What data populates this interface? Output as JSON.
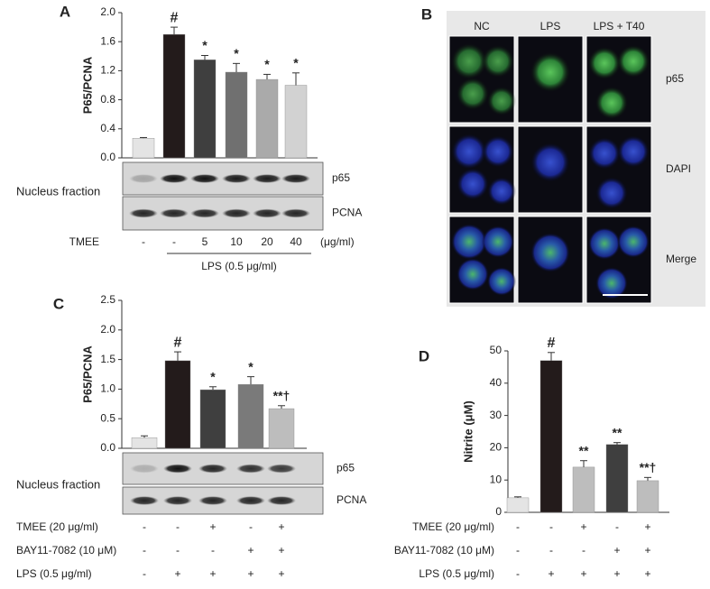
{
  "chart_data": [
    {
      "type": "bar",
      "label": "A",
      "y_label": "P65/PCNA",
      "values": [
        0.27,
        1.7,
        1.35,
        1.18,
        1.08,
        1.0
      ],
      "errors": [
        0.01,
        0.1,
        0.06,
        0.12,
        0.07,
        0.17
      ],
      "colors": [
        "#e4e4e4",
        "#231b1b",
        "#3f3f3f",
        "#707070",
        "#aaaaaa",
        "#d2d2d2"
      ],
      "annotations": [
        null,
        "#",
        "*",
        "*",
        "*",
        "*"
      ],
      "ylim": [
        0,
        2.0
      ],
      "yticks": [
        {
          "value": 0,
          "label": "0.0"
        },
        {
          "value": 0.4,
          "label": "0.4"
        },
        {
          "value": 0.8,
          "label": "0.8"
        },
        {
          "value": 1.2,
          "label": "1.2"
        },
        {
          "value": 1.6,
          "label": "1.6"
        },
        {
          "value": 2.0,
          "label": "2.0"
        }
      ],
      "blot": {
        "label": "Nucleus fraction",
        "bands": [
          "p65",
          "PCNA"
        ]
      },
      "treatments": [
        {
          "name": "TMEE",
          "marks": [
            "-",
            "-",
            "5",
            "10",
            "20",
            "40"
          ],
          "unit": "(μg/ml)"
        }
      ],
      "group_label": "LPS (0.5 μg/ml)"
    },
    {
      "type": "bar",
      "label": "C",
      "y_label": "P65/PCNA",
      "values": [
        0.18,
        1.48,
        0.99,
        1.08,
        0.67
      ],
      "errors": [
        0.03,
        0.15,
        0.05,
        0.13,
        0.05
      ],
      "colors": [
        "#e4e4e4",
        "#231b1b",
        "#3f3f3f",
        "#7a7a7a",
        "#bdbdbd"
      ],
      "annotations": [
        null,
        "#",
        "*",
        "*",
        "**†"
      ],
      "ylim": [
        0,
        2.5
      ],
      "yticks": [
        {
          "value": 0,
          "label": "0.0"
        },
        {
          "value": 0.5,
          "label": "0.5"
        },
        {
          "value": 1.0,
          "label": "1.0"
        },
        {
          "value": 1.5,
          "label": "1.5"
        },
        {
          "value": 2.0,
          "label": "2.0"
        },
        {
          "value": 2.5,
          "label": "2.5"
        }
      ],
      "blot": {
        "label": "Nucleus fraction",
        "bands": [
          "p65",
          "PCNA"
        ]
      },
      "treatments": [
        {
          "name": "TMEE (20 μg/ml)",
          "marks": [
            "-",
            "-",
            "+",
            "-",
            "+"
          ]
        },
        {
          "name": "BAY11-7082 (10 μM)",
          "marks": [
            "-",
            "-",
            "-",
            "+",
            "+"
          ]
        },
        {
          "name": "LPS (0.5 μg/ml)",
          "marks": [
            "-",
            "+",
            "+",
            "+",
            "+"
          ]
        }
      ]
    },
    {
      "type": "bar",
      "label": "D",
      "y_label": "Nitrite (μM)",
      "values": [
        4.5,
        47,
        14,
        21,
        9.8
      ],
      "errors": [
        0.3,
        2.5,
        2,
        0.6,
        1
      ],
      "colors": [
        "#e4e4e4",
        "#231b1b",
        "#bdbdbd",
        "#3f3f3f",
        "#bdbdbd"
      ],
      "annotations": [
        null,
        "#",
        "**",
        "**",
        "**†"
      ],
      "ylim": [
        0,
        50
      ],
      "yticks": [
        0,
        10,
        20,
        30,
        40,
        50
      ],
      "treatments": [
        {
          "name": "TMEE (20 μg/ml)",
          "marks": [
            "-",
            "-",
            "+",
            "-",
            "+"
          ]
        },
        {
          "name": "BAY11-7082 (10 μM)",
          "marks": [
            "-",
            "-",
            "-",
            "+",
            "+"
          ]
        },
        {
          "name": "LPS (0.5 μg/ml)",
          "marks": [
            "-",
            "+",
            "+",
            "+",
            "+"
          ]
        }
      ]
    }
  ],
  "panel_b": {
    "label": "B",
    "columns": [
      "NC",
      "LPS",
      "LPS + T40"
    ],
    "rows": [
      "p65",
      "DAPI",
      "Merge"
    ]
  }
}
